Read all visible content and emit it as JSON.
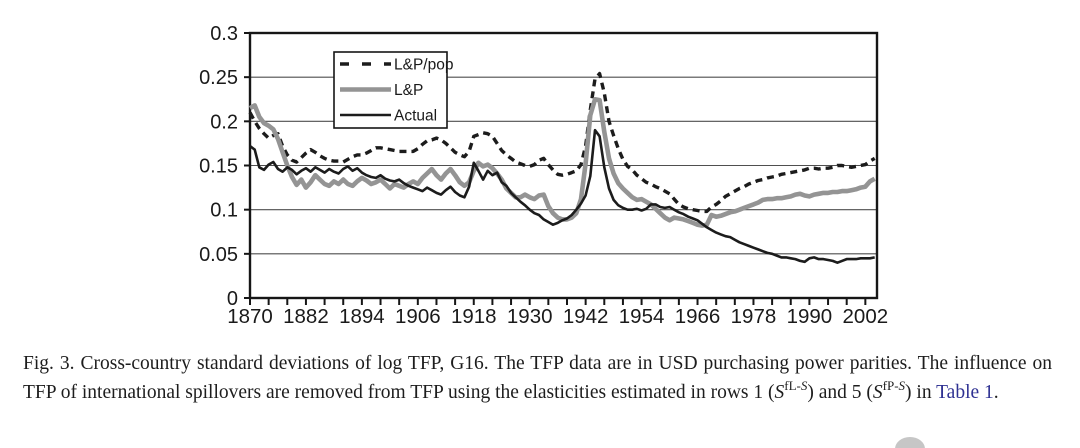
{
  "colors": {
    "black_line": "#1c1c1c",
    "gray_line": "#949494",
    "grid": "#4f4f4f",
    "border": "#161616",
    "label": "#1a1a1a",
    "link_blue": "#2e3192",
    "artifact_gray": "#c6c6c6"
  },
  "caption": {
    "part1": "Fig. 3. Cross-country standard deviations of log TFP, G16. The TFP data are in USD purchasing power parities. The influence on TFP of international spillovers are removed from TFP using the elasticities estimated in rows 1 (",
    "var1": "S",
    "sup1a": "fL-",
    "sup1b": "S",
    "part2": ") and 5 (",
    "var2": "S",
    "sup2a": "fP-",
    "sup2b": "S",
    "part3": ") in ",
    "link": "Table 1",
    "part4": "."
  },
  "chart_data": {
    "type": "line",
    "title": "",
    "xlabel": "",
    "ylabel": "",
    "grid": "horizontal",
    "legend_position": "top-left-inside",
    "xlim": [
      1870,
      2004.5
    ],
    "ylim": [
      0,
      0.3
    ],
    "x_start": 1870,
    "x_step": 1,
    "x_tick_labels": [
      "1870",
      "1882",
      "1894",
      "1906",
      "1918",
      "1930",
      "1942",
      "1954",
      "1966",
      "1978",
      "1990",
      "2002"
    ],
    "x_major_ticks": [
      1870,
      1882,
      1894,
      1906,
      1918,
      1930,
      1942,
      1954,
      1966,
      1978,
      1990,
      2002
    ],
    "x_minor_step": 4,
    "y_ticks": [
      0,
      0.05,
      0.1,
      0.15,
      0.2,
      0.25,
      0.3
    ],
    "y_tick_labels": [
      "0",
      "0.05",
      "0.1",
      "0.15",
      "0.2",
      "0.25",
      "0.3"
    ],
    "series": [
      {
        "name": "L&P/pop",
        "style": "dashed",
        "color": "#1c1c1c",
        "width": 3.4,
        "values": [
          0.21,
          0.2,
          0.192,
          0.186,
          0.181,
          0.184,
          0.186,
          0.172,
          0.162,
          0.156,
          0.154,
          0.159,
          0.164,
          0.168,
          0.165,
          0.161,
          0.158,
          0.156,
          0.155,
          0.155,
          0.154,
          0.157,
          0.16,
          0.162,
          0.162,
          0.164,
          0.167,
          0.17,
          0.17,
          0.169,
          0.168,
          0.167,
          0.166,
          0.166,
          0.166,
          0.166,
          0.169,
          0.174,
          0.178,
          0.179,
          0.181,
          0.179,
          0.175,
          0.17,
          0.165,
          0.162,
          0.16,
          0.166,
          0.183,
          0.185,
          0.187,
          0.186,
          0.183,
          0.175,
          0.167,
          0.162,
          0.158,
          0.154,
          0.152,
          0.15,
          0.149,
          0.151,
          0.156,
          0.158,
          0.151,
          0.145,
          0.14,
          0.139,
          0.14,
          0.142,
          0.144,
          0.151,
          0.172,
          0.213,
          0.248,
          0.254,
          0.232,
          0.2,
          0.184,
          0.169,
          0.157,
          0.149,
          0.145,
          0.139,
          0.135,
          0.131,
          0.129,
          0.126,
          0.124,
          0.121,
          0.118,
          0.112,
          0.106,
          0.103,
          0.101,
          0.1,
          0.099,
          0.098,
          0.098,
          0.103,
          0.106,
          0.11,
          0.115,
          0.118,
          0.121,
          0.124,
          0.126,
          0.129,
          0.131,
          0.133,
          0.134,
          0.136,
          0.137,
          0.138,
          0.14,
          0.141,
          0.142,
          0.143,
          0.144,
          0.145,
          0.147,
          0.147,
          0.146,
          0.147,
          0.147,
          0.148,
          0.15,
          0.15,
          0.149,
          0.148,
          0.149,
          0.15,
          0.151,
          0.155,
          0.158
        ]
      },
      {
        "name": "L&P",
        "style": "solid",
        "color": "#949494",
        "width": 4.6,
        "values": [
          0.215,
          0.218,
          0.205,
          0.198,
          0.195,
          0.191,
          0.18,
          0.165,
          0.15,
          0.137,
          0.128,
          0.134,
          0.125,
          0.131,
          0.139,
          0.134,
          0.129,
          0.127,
          0.132,
          0.129,
          0.134,
          0.129,
          0.127,
          0.132,
          0.136,
          0.133,
          0.129,
          0.131,
          0.134,
          0.129,
          0.124,
          0.129,
          0.127,
          0.125,
          0.129,
          0.132,
          0.129,
          0.136,
          0.141,
          0.146,
          0.139,
          0.134,
          0.141,
          0.146,
          0.139,
          0.131,
          0.127,
          0.131,
          0.144,
          0.153,
          0.149,
          0.151,
          0.147,
          0.141,
          0.134,
          0.124,
          0.119,
          0.114,
          0.114,
          0.117,
          0.114,
          0.112,
          0.116,
          0.117,
          0.104,
          0.096,
          0.091,
          0.089,
          0.089,
          0.091,
          0.096,
          0.112,
          0.152,
          0.207,
          0.225,
          0.224,
          0.188,
          0.158,
          0.141,
          0.13,
          0.124,
          0.119,
          0.114,
          0.111,
          0.112,
          0.109,
          0.106,
          0.101,
          0.096,
          0.091,
          0.088,
          0.091,
          0.09,
          0.089,
          0.087,
          0.085,
          0.083,
          0.082,
          0.083,
          0.094,
          0.092,
          0.093,
          0.095,
          0.097,
          0.098,
          0.1,
          0.102,
          0.104,
          0.106,
          0.108,
          0.111,
          0.112,
          0.112,
          0.113,
          0.113,
          0.114,
          0.115,
          0.117,
          0.118,
          0.116,
          0.115,
          0.117,
          0.118,
          0.119,
          0.119,
          0.12,
          0.12,
          0.121,
          0.121,
          0.122,
          0.123,
          0.125,
          0.126,
          0.132,
          0.135
        ]
      },
      {
        "name": "Actual",
        "style": "solid",
        "color": "#1c1c1c",
        "width": 2.6,
        "values": [
          0.172,
          0.168,
          0.148,
          0.145,
          0.151,
          0.154,
          0.146,
          0.143,
          0.148,
          0.145,
          0.14,
          0.144,
          0.147,
          0.143,
          0.148,
          0.145,
          0.142,
          0.146,
          0.143,
          0.141,
          0.146,
          0.149,
          0.144,
          0.147,
          0.142,
          0.139,
          0.137,
          0.136,
          0.139,
          0.135,
          0.133,
          0.132,
          0.134,
          0.13,
          0.127,
          0.125,
          0.123,
          0.121,
          0.125,
          0.122,
          0.119,
          0.117,
          0.122,
          0.126,
          0.12,
          0.116,
          0.114,
          0.126,
          0.153,
          0.144,
          0.134,
          0.144,
          0.139,
          0.142,
          0.131,
          0.127,
          0.119,
          0.114,
          0.109,
          0.105,
          0.1,
          0.096,
          0.094,
          0.089,
          0.086,
          0.083,
          0.085,
          0.088,
          0.09,
          0.094,
          0.1,
          0.107,
          0.116,
          0.138,
          0.19,
          0.183,
          0.148,
          0.124,
          0.111,
          0.105,
          0.102,
          0.1,
          0.1,
          0.101,
          0.099,
          0.101,
          0.106,
          0.106,
          0.103,
          0.102,
          0.103,
          0.1,
          0.097,
          0.095,
          0.092,
          0.09,
          0.088,
          0.084,
          0.08,
          0.077,
          0.074,
          0.072,
          0.07,
          0.069,
          0.066,
          0.063,
          0.061,
          0.059,
          0.057,
          0.055,
          0.053,
          0.051,
          0.05,
          0.048,
          0.046,
          0.046,
          0.045,
          0.044,
          0.042,
          0.041,
          0.045,
          0.046,
          0.044,
          0.044,
          0.043,
          0.042,
          0.04,
          0.042,
          0.044,
          0.044,
          0.044,
          0.045,
          0.045,
          0.045,
          0.046
        ]
      }
    ]
  }
}
